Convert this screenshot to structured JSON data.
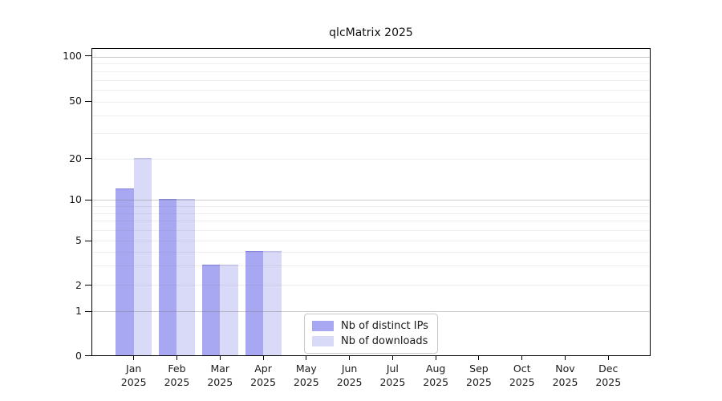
{
  "title": "qlcMatrix 2025",
  "chart_data": {
    "type": "bar",
    "title": "qlcMatrix 2025",
    "categories": [
      "Jan",
      "Feb",
      "Mar",
      "Apr",
      "May",
      "Jun",
      "Jul",
      "Aug",
      "Sep",
      "Oct",
      "Nov",
      "Dec"
    ],
    "year_label": "2025",
    "series": [
      {
        "name": "Nb of distinct IPs",
        "color": "#a7a7f2",
        "values": [
          12,
          10,
          3,
          4,
          0,
          0,
          0,
          0,
          0,
          0,
          0,
          0
        ]
      },
      {
        "name": "Nb of downloads",
        "color": "#d9d9f8",
        "values": [
          20,
          10,
          3,
          4,
          0,
          0,
          0,
          0,
          0,
          0,
          0,
          0
        ]
      }
    ],
    "yticks": [
      0,
      1,
      2,
      5,
      10,
      20,
      50,
      100
    ],
    "ylim": [
      0,
      100
    ],
    "yscale": "symlog",
    "xlabel": "",
    "ylabel": "",
    "grid": "horizontal major and minor, drawn over bars",
    "legend_position": "inside lower-center"
  },
  "colors": {
    "background": "#ffffff",
    "axis": "#000000",
    "text": "#191919",
    "grid_major": "#d4d4d4",
    "grid_minor": "#ececec",
    "bar_distinct_ips": "#a7a7f2",
    "bar_downloads": "#d9d9f8"
  }
}
